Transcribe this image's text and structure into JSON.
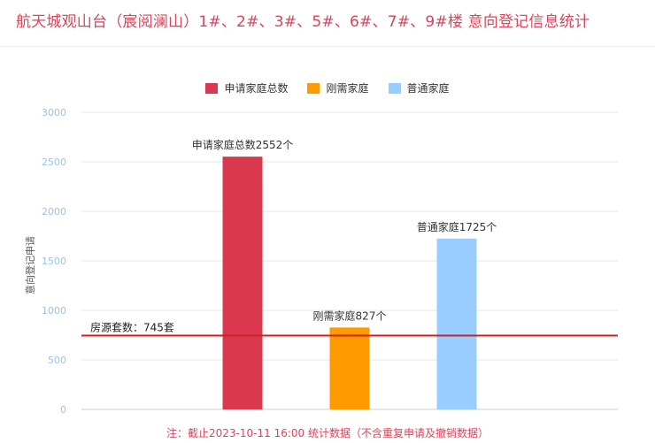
{
  "title": "航天城观山台（宸阅澜山）1#、2#、3#、5#、6#、7#、9#楼 意向登记信息统计",
  "footnote": "注：截止2023-10-11 16:00 统计数据（不含重复申请及撤销数据）",
  "colors": {
    "title": "#d9455a",
    "apply": "#d9384f",
    "rigid": "#ff9a00",
    "normal": "#99ccff",
    "refline": "#cc2222",
    "axis_tick": "#99c2e6"
  },
  "chart_data": {
    "type": "bar",
    "ylabel": "意向登记申请",
    "ylim": [
      0,
      3000
    ],
    "yticks": [
      0,
      500,
      1000,
      1500,
      2000,
      2500,
      3000
    ],
    "legend": [
      "申请家庭总数",
      "刚需家庭",
      "普通家庭"
    ],
    "legend_position": "top-center",
    "grid": true,
    "bars": [
      {
        "name": "申请家庭总数",
        "value": 2552,
        "label": "申请家庭总数2552个",
        "color": "#d9384f"
      },
      {
        "name": "刚需家庭",
        "value": 827,
        "label": "刚需家庭827个",
        "color": "#ff9a00"
      },
      {
        "name": "普通家庭",
        "value": 1725,
        "label": "普通家庭1725个",
        "color": "#99ccff"
      }
    ],
    "reference_line": {
      "value": 745,
      "label": "房源套数：745套"
    }
  }
}
